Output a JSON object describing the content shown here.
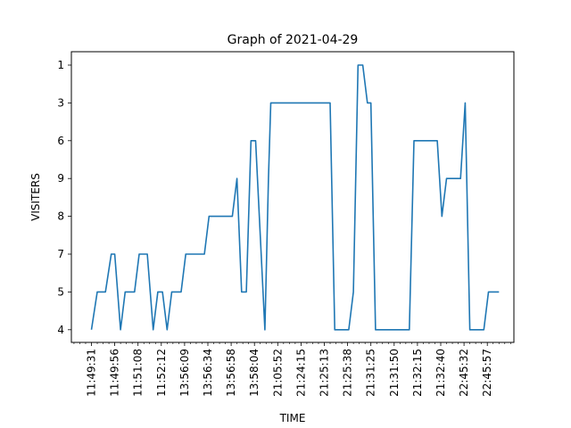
{
  "chart_data": {
    "type": "line",
    "title": "Graph of 2021-04-29",
    "xlabel": "TIME",
    "ylabel": "VISITERS",
    "y_categories_top_to_bottom": [
      "1",
      "3",
      "6",
      "9",
      "8",
      "7",
      "5",
      "4"
    ],
    "x_tick_labels": [
      "11:49:31",
      "11:49:56",
      "11:51:08",
      "11:52:12",
      "13:56:09",
      "13:56:34",
      "13:56:58",
      "13:58:04",
      "21:05:52",
      "21:24:15",
      "21:25:13",
      "21:25:38",
      "21:31:25",
      "21:31:50",
      "21:32:15",
      "21:32:40",
      "22:45:32",
      "22:45:57"
    ],
    "grid": false,
    "legend": "none",
    "series": [
      {
        "color": "#1f77b4",
        "points": [
          [
            0,
            "4"
          ],
          [
            0.25,
            "5"
          ],
          [
            0.6,
            "5"
          ],
          [
            0.85,
            "7"
          ],
          [
            1.0,
            "7"
          ],
          [
            1.25,
            "4"
          ],
          [
            1.45,
            "5"
          ],
          [
            1.85,
            "5"
          ],
          [
            2.05,
            "7"
          ],
          [
            2.4,
            "7"
          ],
          [
            2.65,
            "4"
          ],
          [
            2.85,
            "5"
          ],
          [
            3.05,
            "5"
          ],
          [
            3.25,
            "4"
          ],
          [
            3.45,
            "5"
          ],
          [
            3.85,
            "5"
          ],
          [
            4.05,
            "7"
          ],
          [
            4.85,
            "7"
          ],
          [
            5.05,
            "8"
          ],
          [
            6.05,
            "8"
          ],
          [
            6.25,
            "9"
          ],
          [
            6.45,
            "5"
          ],
          [
            6.65,
            "5"
          ],
          [
            6.85,
            "6"
          ],
          [
            7.05,
            "6"
          ],
          [
            7.45,
            "4"
          ],
          [
            7.6,
            "9"
          ],
          [
            7.7,
            "3"
          ],
          [
            10.25,
            "3"
          ],
          [
            10.45,
            "4"
          ],
          [
            11.05,
            "4"
          ],
          [
            11.25,
            "5"
          ],
          [
            11.45,
            "1"
          ],
          [
            11.65,
            "1"
          ],
          [
            11.85,
            "3"
          ],
          [
            12.0,
            "3"
          ],
          [
            12.2,
            "4"
          ],
          [
            13.65,
            "4"
          ],
          [
            13.85,
            "6"
          ],
          [
            14.85,
            "6"
          ],
          [
            15.05,
            "8"
          ],
          [
            15.25,
            "9"
          ],
          [
            15.85,
            "9"
          ],
          [
            16.05,
            "3"
          ],
          [
            16.25,
            "4"
          ],
          [
            16.85,
            "4"
          ],
          [
            17.05,
            "5"
          ],
          [
            17.5,
            "5"
          ]
        ]
      }
    ],
    "colors": {
      "line": "#1f77b4",
      "axes": "#000000",
      "background": "#ffffff"
    }
  }
}
